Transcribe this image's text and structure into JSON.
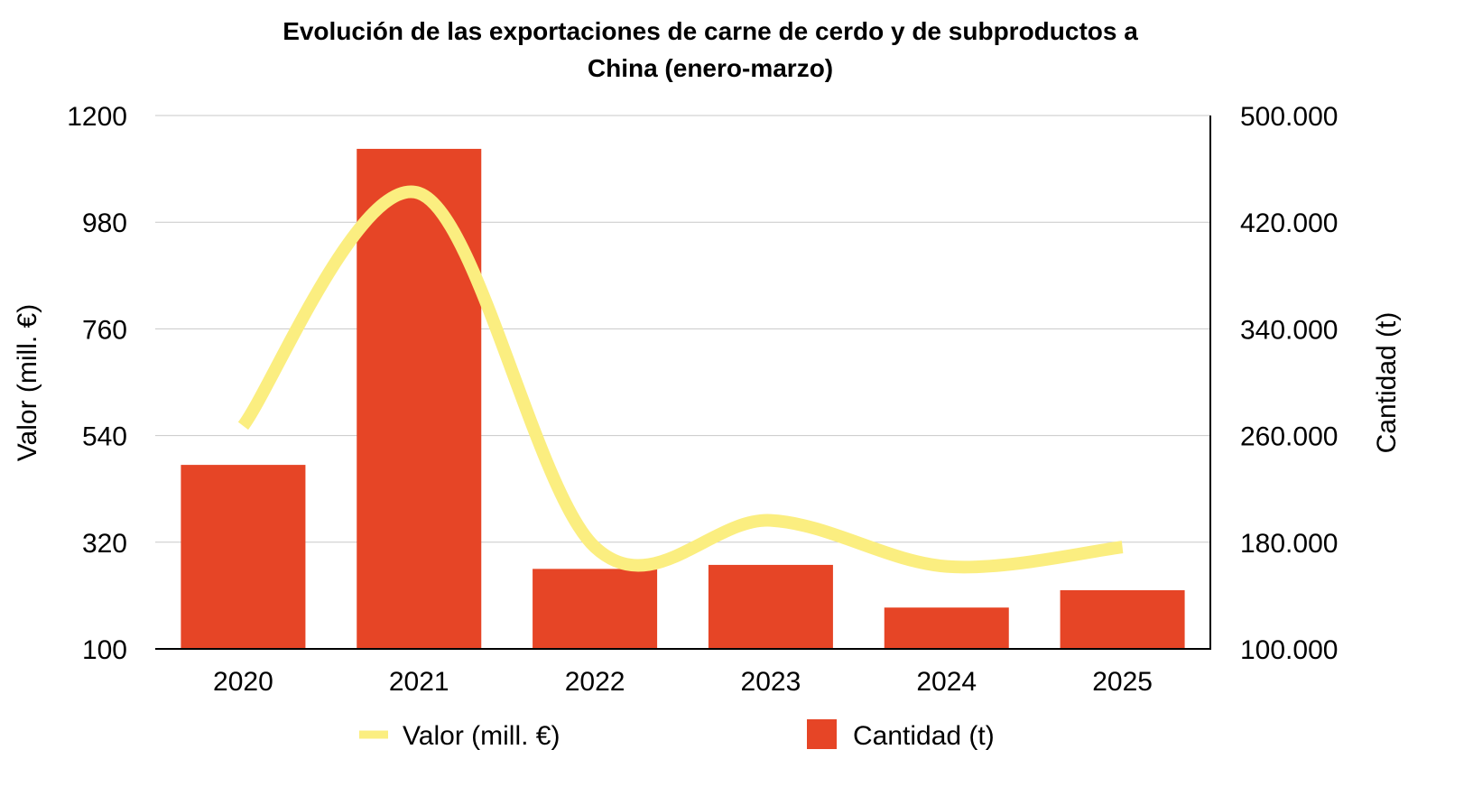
{
  "chart_data": {
    "type": "bar",
    "title_lines": [
      "Evolución de las exportaciones de carne de cerdo y de subproductos a",
      "China (enero-marzo)"
    ],
    "categories": [
      "2020",
      "2021",
      "2022",
      "2023",
      "2024",
      "2025"
    ],
    "y_left": {
      "label": "Valor (mill. €)",
      "range": [
        100,
        1200
      ],
      "ticks": [
        100,
        320,
        540,
        760,
        980,
        1200
      ],
      "tick_labels": [
        "100",
        "320",
        "540",
        "760",
        "980",
        "1200"
      ]
    },
    "y_right": {
      "label": "Cantidad (t)",
      "range": [
        100000,
        500000
      ],
      "ticks": [
        100000,
        180000,
        260000,
        340000,
        420000,
        500000
      ],
      "tick_labels": [
        "100.000",
        "180.000",
        "260.000",
        "340.000",
        "420.000",
        "500.000"
      ]
    },
    "series": [
      {
        "name": "Valor (mill. €)",
        "type": "line",
        "axis": "left",
        "color": "#FBEE80",
        "values": [
          560,
          1040,
          310,
          365,
          270,
          310
        ]
      },
      {
        "name": "Cantidad (t)",
        "type": "bar",
        "axis": "right",
        "color": "#E64526",
        "values": [
          238000,
          475000,
          160000,
          163000,
          131000,
          144000
        ]
      }
    ],
    "grid": true,
    "legend_position": "bottom"
  }
}
